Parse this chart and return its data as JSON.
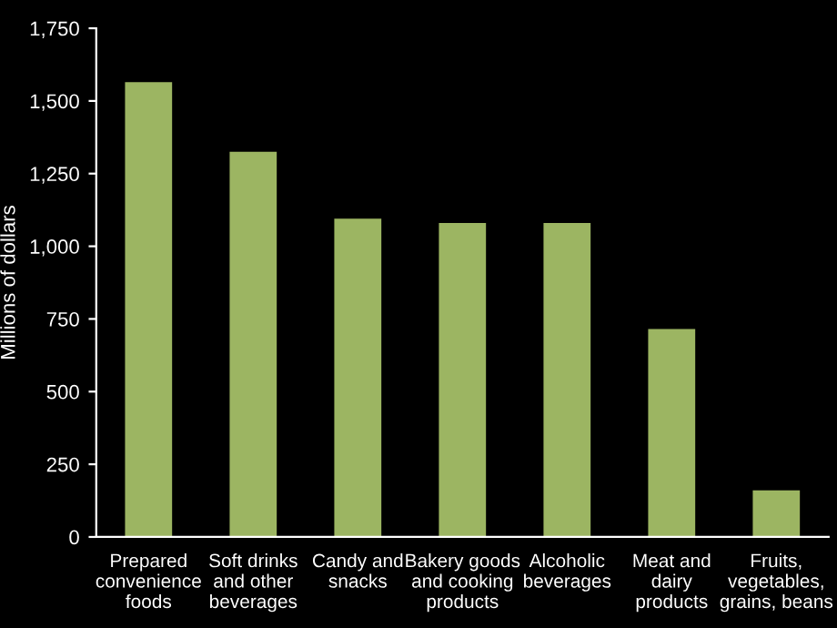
{
  "chart_data": {
    "type": "bar",
    "ylabel": "Millions of dollars",
    "categories": [
      "Prepared\nconvenience\nfoods",
      "Soft drinks\nand other\nbeverages",
      "Candy and\nsnacks",
      "Bakery goods\nand cooking\nproducts",
      "Alcoholic\nbeverages",
      "Meat and\ndairy\nproducts",
      "Fruits,\nvegetables,\ngrains, beans"
    ],
    "values": [
      1565,
      1325,
      1095,
      1080,
      1080,
      715,
      160
    ],
    "color": "#9cb562",
    "ylim": [
      0,
      1750
    ],
    "yticks": [
      {
        "value": 0,
        "label": "0"
      },
      {
        "value": 250,
        "label": "250"
      },
      {
        "value": 500,
        "label": "500"
      },
      {
        "value": 750,
        "label": "750"
      },
      {
        "value": 1000,
        "label": "1,000"
      },
      {
        "value": 1250,
        "label": "1,250"
      },
      {
        "value": 1500,
        "label": "1,500"
      },
      {
        "value": 1750,
        "label": "1,750"
      }
    ],
    "grid": false,
    "legend": false
  }
}
